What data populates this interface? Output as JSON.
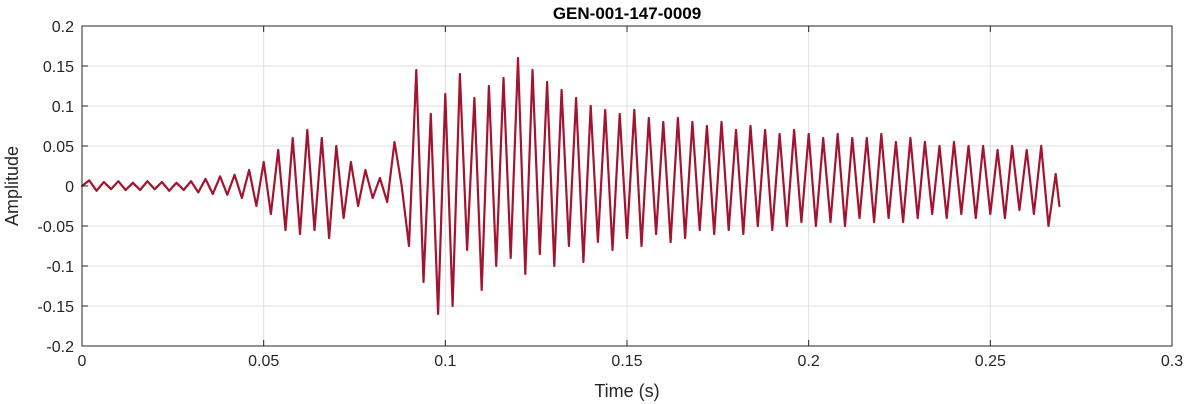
{
  "chart_data": {
    "type": "line",
    "title": "GEN-001-147-0009",
    "xlabel": "Time (s)",
    "ylabel": "Amplitude",
    "xlim": [
      0,
      0.3
    ],
    "ylim": [
      -0.2,
      0.2
    ],
    "xticks": [
      0,
      0.05,
      0.1,
      0.15,
      0.2,
      0.25,
      0.3
    ],
    "xtick_labels": [
      "0",
      "0.05",
      "0.1",
      "0.15",
      "0.2",
      "0.25",
      "0.3"
    ],
    "yticks": [
      0.2,
      0.15,
      0.1,
      0.05,
      0,
      -0.05,
      -0.1,
      -0.15,
      -0.2
    ],
    "ytick_labels": [
      "0.2",
      "0.15",
      "0.1",
      "0.05",
      "0",
      "-0.05",
      "-0.1",
      "-0.15",
      "-0.2"
    ],
    "grid": true,
    "legend": "none",
    "line_color": "#A2142F",
    "series": [
      {
        "x": [
          0,
          0.002,
          0.004,
          0.006,
          0.008,
          0.01,
          0.012,
          0.014,
          0.016,
          0.018,
          0.02,
          0.022,
          0.024,
          0.026,
          0.028,
          0.03,
          0.032,
          0.034,
          0.036,
          0.038,
          0.04,
          0.042,
          0.044,
          0.046,
          0.048,
          0.05,
          0.052,
          0.054,
          0.056,
          0.058,
          0.06,
          0.062,
          0.064,
          0.066,
          0.068,
          0.07,
          0.072,
          0.074,
          0.076,
          0.078,
          0.08,
          0.082,
          0.084,
          0.086,
          0.088,
          0.09,
          0.092,
          0.094,
          0.096,
          0.098,
          0.1,
          0.102,
          0.104,
          0.106,
          0.108,
          0.11,
          0.112,
          0.114,
          0.116,
          0.118,
          0.12,
          0.122,
          0.124,
          0.126,
          0.128,
          0.13,
          0.132,
          0.134,
          0.136,
          0.138,
          0.14,
          0.142,
          0.144,
          0.146,
          0.148,
          0.15,
          0.152,
          0.154,
          0.156,
          0.158,
          0.16,
          0.162,
          0.164,
          0.166,
          0.168,
          0.17,
          0.172,
          0.174,
          0.176,
          0.178,
          0.18,
          0.182,
          0.184,
          0.186,
          0.188,
          0.19,
          0.192,
          0.194,
          0.196,
          0.198,
          0.2,
          0.202,
          0.204,
          0.206,
          0.208,
          0.21,
          0.212,
          0.214,
          0.216,
          0.218,
          0.22,
          0.222,
          0.224,
          0.226,
          0.228,
          0.23,
          0.232,
          0.234,
          0.236,
          0.238,
          0.24,
          0.242,
          0.244,
          0.246,
          0.248,
          0.25,
          0.252,
          0.254,
          0.256,
          0.258,
          0.26,
          0.262,
          0.264,
          0.266,
          0.268,
          0.269
        ],
        "y": [
          0.0,
          0.007,
          -0.006,
          0.005,
          -0.004,
          0.006,
          -0.005,
          0.004,
          -0.005,
          0.006,
          -0.004,
          0.005,
          -0.006,
          0.004,
          -0.005,
          0.006,
          -0.008,
          0.009,
          -0.01,
          0.012,
          -0.011,
          0.014,
          -0.015,
          0.02,
          -0.025,
          0.03,
          -0.035,
          0.045,
          -0.055,
          0.06,
          -0.06,
          0.07,
          -0.055,
          0.06,
          -0.065,
          0.05,
          -0.04,
          0.03,
          -0.025,
          0.02,
          -0.015,
          0.01,
          -0.02,
          0.055,
          0.0,
          -0.075,
          0.145,
          -0.12,
          0.09,
          -0.16,
          0.115,
          -0.15,
          0.14,
          -0.08,
          0.11,
          -0.13,
          0.125,
          -0.1,
          0.135,
          -0.09,
          0.16,
          -0.11,
          0.145,
          -0.085,
          0.13,
          -0.1,
          0.12,
          -0.075,
          0.11,
          -0.095,
          0.1,
          -0.07,
          0.095,
          -0.08,
          0.09,
          -0.065,
          0.095,
          -0.075,
          0.085,
          -0.06,
          0.08,
          -0.07,
          0.085,
          -0.065,
          0.08,
          -0.055,
          0.075,
          -0.06,
          0.08,
          -0.055,
          0.07,
          -0.06,
          0.075,
          -0.05,
          0.07,
          -0.055,
          0.065,
          -0.05,
          0.07,
          -0.045,
          0.065,
          -0.05,
          0.06,
          -0.045,
          0.065,
          -0.05,
          0.06,
          -0.04,
          0.06,
          -0.045,
          0.065,
          -0.04,
          0.055,
          -0.045,
          0.06,
          -0.04,
          0.055,
          -0.035,
          0.05,
          -0.04,
          0.055,
          -0.035,
          0.05,
          -0.04,
          0.05,
          -0.035,
          0.045,
          -0.04,
          0.05,
          -0.03,
          0.045,
          -0.035,
          0.05,
          -0.05,
          0.015,
          -0.025
        ]
      }
    ]
  }
}
